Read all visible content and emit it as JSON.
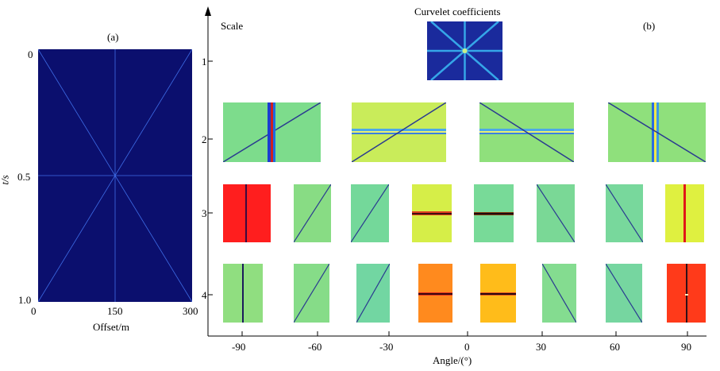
{
  "figure": {
    "panel_a": {
      "label": "(a)",
      "y_axis_label": "t/s",
      "x_axis_label": "Offset/m",
      "y_ticks": [
        "0",
        "0.5",
        "1.0"
      ],
      "x_ticks": [
        "0",
        "150",
        "300"
      ],
      "background_color": "#0b0f6e",
      "line_color": "#3f6ee8"
    },
    "panel_b": {
      "label": "(b)",
      "title": "Curvelet coefficients",
      "scale_axis_label": "Scale",
      "angle_axis_label": "Angle/(°)",
      "scales": [
        "1",
        "2",
        "3",
        "4"
      ],
      "angle_ticks": [
        "-90",
        "-60",
        "-30",
        "0",
        "30",
        "60",
        "90"
      ],
      "coefficients": {
        "scale1": {
          "bg": "#1a2a9c",
          "line": "#35a6e8"
        },
        "scale2": [
          {
            "bg": "#7ddc8c",
            "feature": "vertical+diag-up"
          },
          {
            "bg": "#c9ec5a",
            "feature": "horizontal+diag-up"
          },
          {
            "bg": "#8fe07c",
            "feature": "horizontal+diag-down"
          },
          {
            "bg": "#8fe07c",
            "feature": "vertical+diag-down"
          }
        ],
        "scale3": [
          "#ff1e1e",
          "#88dc84",
          "#74d89a",
          "#d6ee48",
          "#78da98",
          "#7ad896",
          "#78d89c",
          "#dff040"
        ],
        "scale4": [
          "#90de80",
          "#86dc88",
          "#72d6a2",
          "#ff8a1e",
          "#ffbc1a",
          "#84dc90",
          "#76d6a0",
          "#ff3a1a"
        ]
      }
    }
  }
}
